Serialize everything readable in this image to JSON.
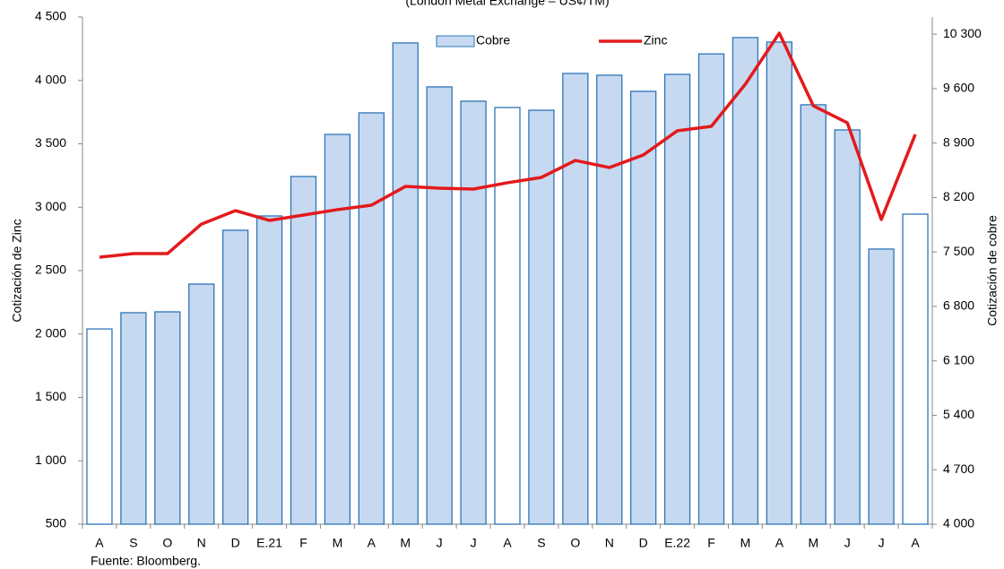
{
  "chart_data": {
    "type": "bar_line",
    "subtitle": "(London Metal Exchange – US¢/TM)",
    "y_label": "Cotización de Zinc",
    "y2_label": "Cotización de cobre",
    "source": "Fuente: Bloomberg.",
    "categories": [
      "A",
      "S",
      "O",
      "N",
      "D",
      "E.21",
      "F",
      "M",
      "A",
      "M",
      "J",
      "J",
      "A",
      "S",
      "O",
      "N",
      "D",
      "E.22",
      "F",
      "M",
      "A",
      "M",
      "J",
      "J",
      "A"
    ],
    "series": [
      {
        "name": "Cobre",
        "type": "bar",
        "axis": "y2",
        "color": "#c6d9f1",
        "edge": "#2e75b6",
        "colors": [
          "#ffffff",
          "#c6d9f1",
          "#c6d9f1",
          "#c6d9f1",
          "#c6d9f1",
          "#c6d9f1",
          "#c6d9f1",
          "#c6d9f1",
          "#c6d9f1",
          "#c6d9f1",
          "#c6d9f1",
          "#c6d9f1",
          "#ffffff",
          "#c6d9f1",
          "#c6d9f1",
          "#c6d9f1",
          "#c6d9f1",
          "#c6d9f1",
          "#c6d9f1",
          "#c6d9f1",
          "#c6d9f1",
          "#c6d9f1",
          "#c6d9f1",
          "#c6d9f1",
          "#ffffff"
        ],
        "values": [
          6510,
          6719,
          6730,
          7087,
          7779,
          7963,
          8470,
          9011,
          9288,
          10187,
          9622,
          9438,
          9357,
          9322,
          9795,
          9772,
          9565,
          9783,
          10046,
          10256,
          10198,
          9392,
          9069,
          7537,
          7986
        ]
      },
      {
        "name": "Zinc",
        "type": "line",
        "color": "#e31a1c",
        "values": [
          2606,
          2634,
          2634,
          2867,
          2973,
          2896,
          2938,
          2981,
          3016,
          3164,
          3150,
          3143,
          3193,
          3235,
          3369,
          3313,
          3412,
          3603,
          3638,
          3970,
          4373,
          3800,
          3666,
          2903,
          3574
        ]
      }
    ],
    "ylim": [
      500,
      4500
    ],
    "yticks": [
      500,
      {
        "value": 1000,
        "label": "1 000"
      },
      {
        "value": 1500,
        "label": "1 500"
      },
      {
        "value": 2000,
        "label": "2 000"
      },
      {
        "value": 2500,
        "label": "2 500"
      },
      {
        "value": 3000,
        "label": "3 000"
      },
      {
        "value": 3500,
        "label": "3 500"
      },
      {
        "value": 4000,
        "label": "4 000"
      },
      {
        "value": 4500,
        "label": "4 500"
      }
    ],
    "y2lim": [
      4000,
      10520
    ],
    "y2ticks": [
      {
        "value": 4000,
        "label": "4 000"
      },
      {
        "value": 4700,
        "label": "4 700"
      },
      {
        "value": 5400,
        "label": "5 400"
      },
      {
        "value": 6100,
        "label": "6 100"
      },
      {
        "value": 6800,
        "label": "6 800"
      },
      {
        "value": 7500,
        "label": "7 500"
      },
      {
        "value": 8200,
        "label": "8 200"
      },
      {
        "value": 8900,
        "label": "8 900"
      },
      {
        "value": 9600,
        "label": "9 600"
      },
      {
        "value": 10300,
        "label": "10 300"
      }
    ],
    "legend": "top"
  }
}
